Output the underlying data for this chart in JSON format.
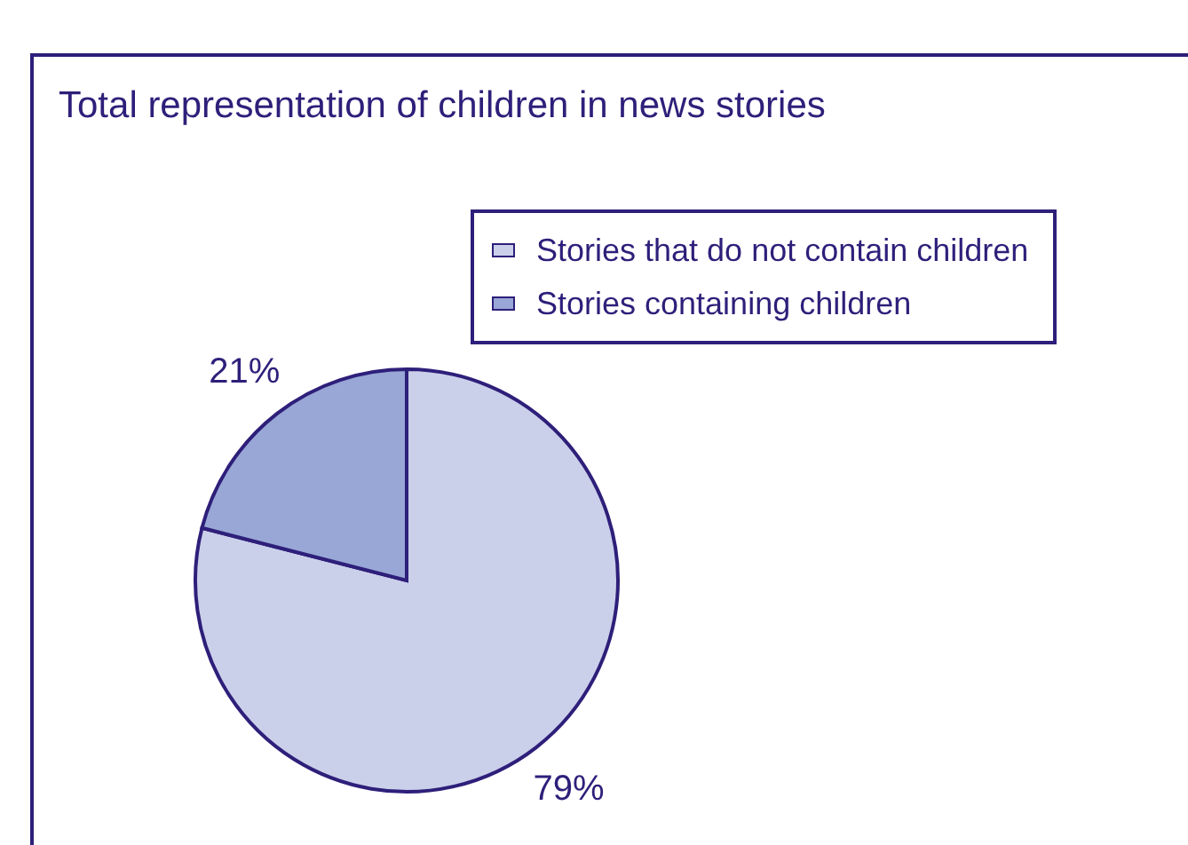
{
  "chart_data": {
    "type": "pie",
    "title": "Total representation of children in news stories",
    "categories": [
      "Stories that do not contain children",
      "Stories containing children"
    ],
    "values": [
      79,
      21
    ],
    "colors": [
      "#cbd0ea",
      "#98a7d6"
    ],
    "value_labels": [
      "79%",
      "21%"
    ],
    "legend": "top right"
  }
}
